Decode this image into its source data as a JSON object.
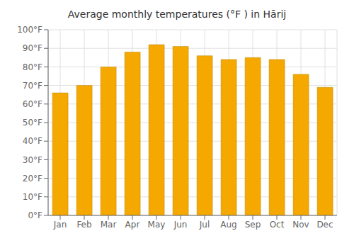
{
  "chart_data": {
    "type": "bar",
    "title": "Average monthly temperatures (°F ) in Hārij",
    "categories": [
      "Jan",
      "Feb",
      "Mar",
      "Apr",
      "May",
      "Jun",
      "Jul",
      "Aug",
      "Sep",
      "Oct",
      "Nov",
      "Dec"
    ],
    "values": [
      66,
      70,
      80,
      88,
      92,
      91,
      86,
      84,
      85,
      84,
      76,
      69
    ],
    "color": "#F5A800",
    "ylim": [
      0,
      100
    ],
    "yticks": [
      {
        "value": 0,
        "label": "0°F"
      },
      {
        "value": 10,
        "label": "10°F"
      },
      {
        "value": 20,
        "label": "20°F"
      },
      {
        "value": 30,
        "label": "30°F"
      },
      {
        "value": 40,
        "label": "40°F"
      },
      {
        "value": 50,
        "label": "50°F"
      },
      {
        "value": 60,
        "label": "60°F"
      },
      {
        "value": 70,
        "label": "70°F"
      },
      {
        "value": 80,
        "label": "80°F"
      },
      {
        "value": 90,
        "label": "90°F"
      },
      {
        "value": 100,
        "label": "100°F"
      }
    ],
    "grid": true
  }
}
